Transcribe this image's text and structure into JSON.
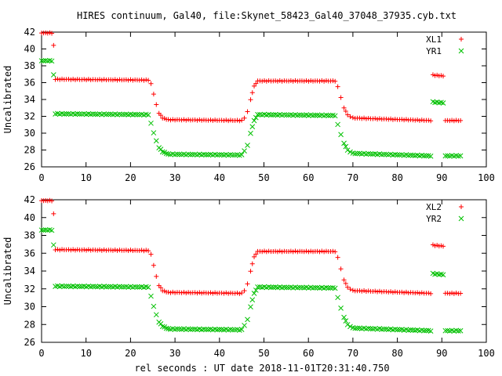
{
  "title": "HIRES continuum, Gal40, file:Skynet_58423_Gal40_37048_37935.cyb.txt",
  "xlabel": "rel seconds : UT date 2018-11-01T20:31:40.750",
  "chart_data": [
    {
      "type": "scatter",
      "ylabel": "Uncalibrated",
      "xlim": [
        0,
        100
      ],
      "ylim": [
        26,
        42
      ],
      "xticks": [
        "0",
        "10",
        "20",
        "30",
        "40",
        "50",
        "60",
        "70",
        "80",
        "90",
        "100"
      ],
      "yticks": [
        "26",
        "28",
        "30",
        "32",
        "34",
        "36",
        "38",
        "40",
        "42"
      ],
      "grid": false,
      "legend_placement": "top-right",
      "series": [
        {
          "name": "XL1",
          "marker": "plus",
          "color": "#ff0000",
          "segments": [
            {
              "x": 0.0,
              "y": 41.9
            },
            {
              "x": 2.3,
              "y": 41.9
            },
            {
              "x": 2.7,
              "y": 40.4
            },
            {
              "x": 3.1,
              "y": 36.4
            },
            {
              "x": 24.0,
              "y": 36.3
            },
            {
              "x": 24.6,
              "y": 35.9
            },
            {
              "x": 25.2,
              "y": 34.6
            },
            {
              "x": 25.8,
              "y": 33.4
            },
            {
              "x": 26.4,
              "y": 32.4
            },
            {
              "x": 27.2,
              "y": 31.8
            },
            {
              "x": 28.5,
              "y": 31.6
            },
            {
              "x": 45.0,
              "y": 31.5
            },
            {
              "x": 45.6,
              "y": 31.8
            },
            {
              "x": 46.3,
              "y": 32.6
            },
            {
              "x": 47.0,
              "y": 34.0
            },
            {
              "x": 47.8,
              "y": 35.6
            },
            {
              "x": 48.6,
              "y": 36.2
            },
            {
              "x": 66.0,
              "y": 36.2
            },
            {
              "x": 66.6,
              "y": 35.5
            },
            {
              "x": 67.3,
              "y": 34.2
            },
            {
              "x": 68.0,
              "y": 33.0
            },
            {
              "x": 68.8,
              "y": 32.2
            },
            {
              "x": 70.0,
              "y": 31.8
            },
            {
              "x": 87.5,
              "y": 31.5
            },
            {
              "x": 88.0,
              "y": 36.9
            },
            {
              "x": 90.3,
              "y": 36.8
            },
            {
              "x": 90.8,
              "y": 31.5
            },
            {
              "x": 94.2,
              "y": 31.5
            }
          ]
        },
        {
          "name": "YR1",
          "marker": "cross",
          "color": "#00c000",
          "segments": [
            {
              "x": 0.0,
              "y": 38.6
            },
            {
              "x": 2.3,
              "y": 38.6
            },
            {
              "x": 2.7,
              "y": 36.9
            },
            {
              "x": 3.1,
              "y": 32.3
            },
            {
              "x": 24.0,
              "y": 32.2
            },
            {
              "x": 24.6,
              "y": 31.2
            },
            {
              "x": 25.2,
              "y": 30.0
            },
            {
              "x": 25.8,
              "y": 29.1
            },
            {
              "x": 26.4,
              "y": 28.3
            },
            {
              "x": 27.2,
              "y": 27.8
            },
            {
              "x": 28.5,
              "y": 27.5
            },
            {
              "x": 45.0,
              "y": 27.4
            },
            {
              "x": 45.6,
              "y": 27.9
            },
            {
              "x": 46.3,
              "y": 28.6
            },
            {
              "x": 47.0,
              "y": 30.0
            },
            {
              "x": 47.8,
              "y": 31.5
            },
            {
              "x": 48.6,
              "y": 32.2
            },
            {
              "x": 66.0,
              "y": 32.1
            },
            {
              "x": 66.6,
              "y": 31.0
            },
            {
              "x": 67.3,
              "y": 29.8
            },
            {
              "x": 68.0,
              "y": 28.8
            },
            {
              "x": 68.8,
              "y": 28.0
            },
            {
              "x": 70.0,
              "y": 27.6
            },
            {
              "x": 87.5,
              "y": 27.3
            },
            {
              "x": 88.0,
              "y": 33.7
            },
            {
              "x": 90.3,
              "y": 33.6
            },
            {
              "x": 90.8,
              "y": 27.3
            },
            {
              "x": 94.2,
              "y": 27.3
            }
          ]
        }
      ]
    },
    {
      "type": "scatter",
      "ylabel": "Uncalibrated",
      "xlim": [
        0,
        100
      ],
      "ylim": [
        26,
        42
      ],
      "xticks": [
        "0",
        "10",
        "20",
        "30",
        "40",
        "50",
        "60",
        "70",
        "80",
        "90",
        "100"
      ],
      "yticks": [
        "26",
        "28",
        "30",
        "32",
        "34",
        "36",
        "38",
        "40",
        "42"
      ],
      "grid": false,
      "legend_placement": "top-right",
      "series": [
        {
          "name": "XL2",
          "marker": "plus",
          "color": "#ff0000",
          "segments": [
            {
              "x": 0.0,
              "y": 41.9
            },
            {
              "x": 2.3,
              "y": 41.9
            },
            {
              "x": 2.7,
              "y": 40.4
            },
            {
              "x": 3.1,
              "y": 36.4
            },
            {
              "x": 24.0,
              "y": 36.3
            },
            {
              "x": 24.6,
              "y": 35.9
            },
            {
              "x": 25.2,
              "y": 34.6
            },
            {
              "x": 25.8,
              "y": 33.4
            },
            {
              "x": 26.4,
              "y": 32.4
            },
            {
              "x": 27.2,
              "y": 31.8
            },
            {
              "x": 28.5,
              "y": 31.6
            },
            {
              "x": 45.0,
              "y": 31.5
            },
            {
              "x": 45.6,
              "y": 31.8
            },
            {
              "x": 46.3,
              "y": 32.6
            },
            {
              "x": 47.0,
              "y": 34.0
            },
            {
              "x": 47.8,
              "y": 35.6
            },
            {
              "x": 48.6,
              "y": 36.2
            },
            {
              "x": 66.0,
              "y": 36.2
            },
            {
              "x": 66.6,
              "y": 35.5
            },
            {
              "x": 67.3,
              "y": 34.2
            },
            {
              "x": 68.0,
              "y": 33.0
            },
            {
              "x": 68.8,
              "y": 32.2
            },
            {
              "x": 70.0,
              "y": 31.8
            },
            {
              "x": 87.5,
              "y": 31.5
            },
            {
              "x": 88.0,
              "y": 36.9
            },
            {
              "x": 90.3,
              "y": 36.8
            },
            {
              "x": 90.8,
              "y": 31.5
            },
            {
              "x": 94.2,
              "y": 31.5
            }
          ]
        },
        {
          "name": "YR2",
          "marker": "cross",
          "color": "#00c000",
          "segments": [
            {
              "x": 0.0,
              "y": 38.6
            },
            {
              "x": 2.3,
              "y": 38.6
            },
            {
              "x": 2.7,
              "y": 36.9
            },
            {
              "x": 3.1,
              "y": 32.3
            },
            {
              "x": 24.0,
              "y": 32.2
            },
            {
              "x": 24.6,
              "y": 31.2
            },
            {
              "x": 25.2,
              "y": 30.0
            },
            {
              "x": 25.8,
              "y": 29.1
            },
            {
              "x": 26.4,
              "y": 28.3
            },
            {
              "x": 27.2,
              "y": 27.8
            },
            {
              "x": 28.5,
              "y": 27.5
            },
            {
              "x": 45.0,
              "y": 27.4
            },
            {
              "x": 45.6,
              "y": 27.9
            },
            {
              "x": 46.3,
              "y": 28.6
            },
            {
              "x": 47.0,
              "y": 30.0
            },
            {
              "x": 47.8,
              "y": 31.5
            },
            {
              "x": 48.6,
              "y": 32.2
            },
            {
              "x": 66.0,
              "y": 32.1
            },
            {
              "x": 66.6,
              "y": 31.0
            },
            {
              "x": 67.3,
              "y": 29.8
            },
            {
              "x": 68.0,
              "y": 28.8
            },
            {
              "x": 68.8,
              "y": 28.0
            },
            {
              "x": 70.0,
              "y": 27.6
            },
            {
              "x": 87.5,
              "y": 27.3
            },
            {
              "x": 88.0,
              "y": 33.7
            },
            {
              "x": 90.3,
              "y": 33.6
            },
            {
              "x": 90.8,
              "y": 27.3
            },
            {
              "x": 94.2,
              "y": 27.3
            }
          ]
        }
      ]
    }
  ]
}
